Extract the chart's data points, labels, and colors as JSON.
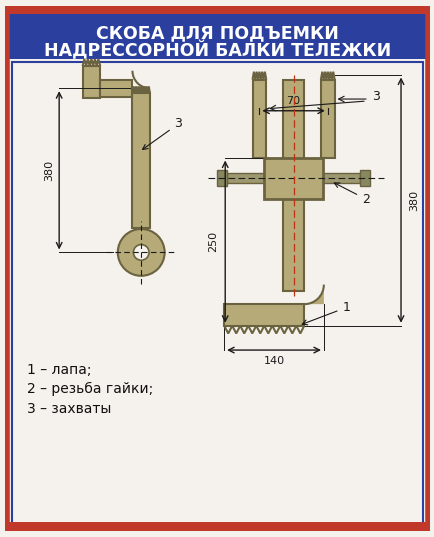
{
  "title_line1": "СКОБА ДЛЯ ПОДЪЕМКИ",
  "title_line2": "НАДРЕССОРНОЙ БАЛКИ ТЕЛЕЖКИ",
  "title_bg_color": "#2a3f9e",
  "title_text_color": "#ffffff",
  "border_color_outer": "#c0392b",
  "bg_color": "#f5f2ed",
  "body_color": "#b5aa78",
  "body_edge": "#6b6340",
  "dim_color": "#1a1a1a",
  "legend_text": [
    "1 – лапа;",
    "2 – резьба гайки;",
    "3 – захваты"
  ],
  "dim_380_left": "380",
  "dim_380_right": "380",
  "dim_250": "250",
  "dim_70": "70",
  "dim_140": "140"
}
